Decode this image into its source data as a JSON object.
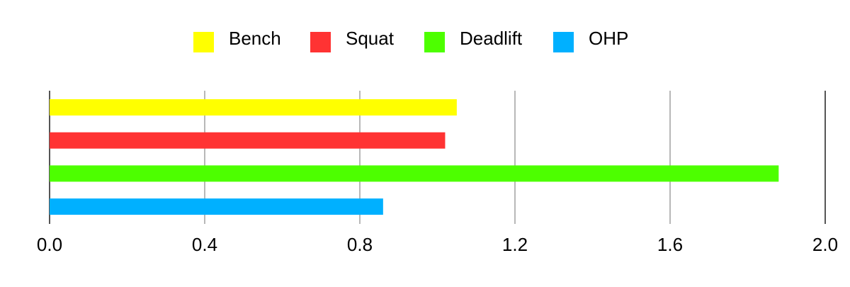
{
  "chart_data": {
    "type": "bar",
    "orientation": "horizontal",
    "series": [
      {
        "name": "Bench",
        "color": "#ffff00",
        "value": 1.05
      },
      {
        "name": "Squat",
        "color": "#ff3333",
        "value": 1.02
      },
      {
        "name": "Deadlift",
        "color": "#4dff00",
        "value": 1.88
      },
      {
        "name": "OHP",
        "color": "#00b0ff",
        "value": 0.86
      }
    ],
    "xlim": [
      0,
      2.0
    ],
    "xticks": [
      "0.0",
      "0.4",
      "0.8",
      "1.2",
      "1.6",
      "2.0"
    ],
    "grid": true,
    "legend_position": "top"
  }
}
